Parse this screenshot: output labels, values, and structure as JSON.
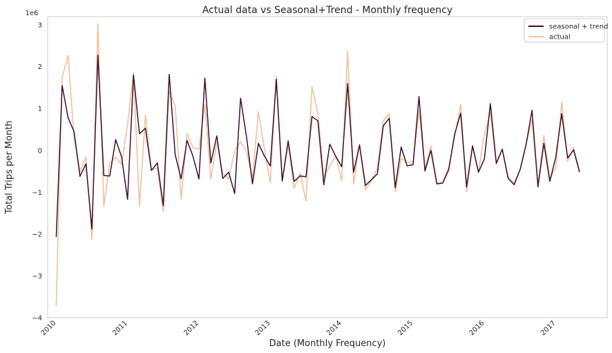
{
  "chart_data": {
    "type": "line",
    "title": "Actual data vs Seasonal+Trend - Monthly frequency",
    "xlabel": "Date (Monthly Frequency)",
    "ylabel": "Total Trips per Month",
    "y_offset_label": "1e6",
    "ylim": [
      -4.0,
      3.2
    ],
    "xlim": [
      2009.88,
      2017.72
    ],
    "x_ticks": [
      2010,
      2011,
      2012,
      2013,
      2014,
      2015,
      2016,
      2017
    ],
    "x_tick_labels": [
      "2010",
      "2011",
      "2012",
      "2013",
      "2014",
      "2015",
      "2016",
      "2017"
    ],
    "y_ticks": [
      -4,
      -3,
      -2,
      -1,
      0,
      1,
      2,
      3
    ],
    "y_tick_labels": [
      "−4",
      "−3",
      "−2",
      "−1",
      "0",
      "1",
      "2",
      "3"
    ],
    "grid": false,
    "legend_position": "top-right",
    "series": [
      {
        "name": "seasonal + trend",
        "color": "#3b0f2f",
        "values": [
          -2.07,
          1.55,
          0.78,
          0.45,
          -0.62,
          -0.32,
          -1.88,
          2.28,
          -0.6,
          -0.61,
          0.26,
          -0.16,
          -1.17,
          1.8,
          0.4,
          0.53,
          -0.48,
          -0.3,
          -1.32,
          1.82,
          -0.1,
          -0.68,
          0.24,
          -0.14,
          -0.68,
          1.73,
          -0.3,
          0.35,
          -0.67,
          -0.52,
          -1.03,
          1.25,
          0.32,
          -0.8,
          0.17,
          -0.13,
          -0.37,
          1.7,
          -0.73,
          0.23,
          -0.74,
          -0.61,
          -0.63,
          0.81,
          0.71,
          -0.82,
          0.15,
          -0.14,
          -0.39,
          1.6,
          -0.52,
          0.13,
          -0.84,
          -0.7,
          -0.56,
          0.59,
          0.77,
          -0.89,
          0.08,
          -0.37,
          -0.34,
          1.29,
          -0.49,
          0.0,
          -0.8,
          -0.78,
          -0.46,
          0.39,
          0.89,
          -0.87,
          0.11,
          -0.52,
          -0.2,
          1.12,
          -0.31,
          0.03,
          -0.67,
          -0.82,
          -0.46,
          0.14,
          0.96,
          -0.87,
          0.17,
          -0.74,
          -0.16,
          0.88,
          -0.18,
          0.01,
          -0.52
        ]
      },
      {
        "name": "actual",
        "color": "#eec19b",
        "values": [
          -3.72,
          1.75,
          2.27,
          0.31,
          -0.5,
          -0.16,
          -2.12,
          3.03,
          -1.34,
          -0.3,
          -0.16,
          -0.34,
          0.63,
          1.87,
          -1.34,
          0.84,
          -0.46,
          -0.42,
          -1.46,
          1.42,
          1.07,
          -1.17,
          0.4,
          0.07,
          0.03,
          1.1,
          -0.68,
          0.2,
          -0.55,
          -0.68,
          -0.01,
          0.21,
          -0.03,
          -0.67,
          0.93,
          0.05,
          -0.77,
          1.78,
          -0.7,
          0.11,
          -0.9,
          -0.54,
          -1.21,
          1.52,
          0.9,
          -0.63,
          -0.37,
          -0.13,
          -0.72,
          2.38,
          -0.8,
          0.14,
          -0.94,
          -0.72,
          -0.43,
          0.71,
          0.88,
          -0.98,
          -0.19,
          -0.28,
          -0.27,
          0.94,
          -0.44,
          0.11,
          -0.78,
          -0.75,
          -0.4,
          0.32,
          1.1,
          -0.99,
          0.09,
          -0.51,
          0.4,
          0.9,
          -0.3,
          0.02,
          -0.63,
          -0.78,
          -0.46,
          0.14,
          0.73,
          -0.81,
          0.36,
          -0.68,
          -0.4,
          1.15,
          -0.26,
          0.07,
          -0.47
        ]
      }
    ]
  }
}
